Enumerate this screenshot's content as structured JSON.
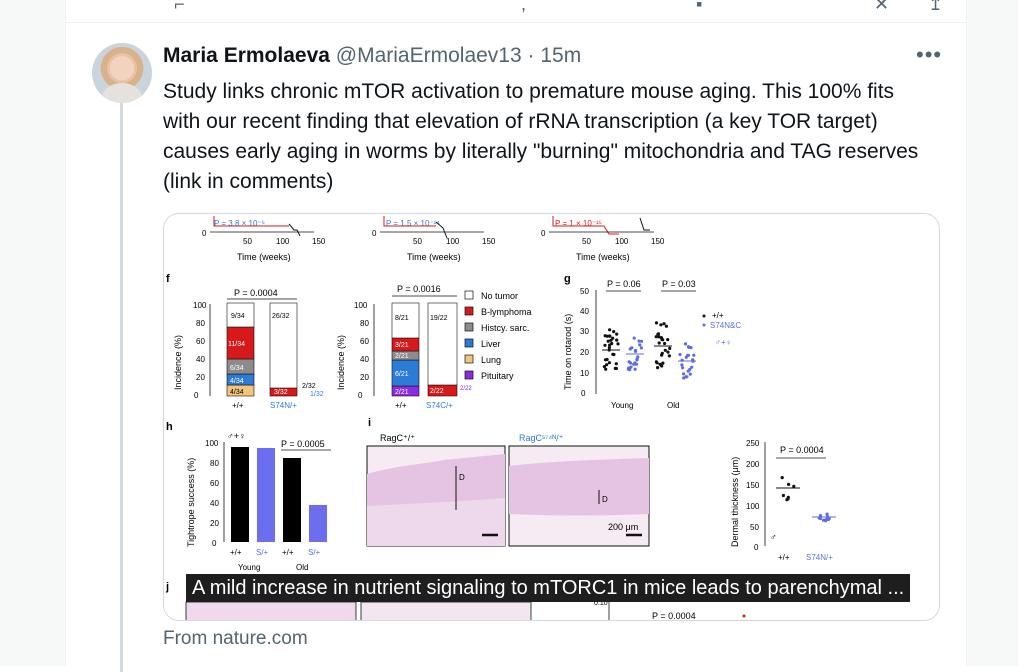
{
  "post": {
    "author_name": "Maria Ermolaeva",
    "handle": "@MariaErmolaev13",
    "separator": "·",
    "time": "15m",
    "more_label": "•••",
    "text": "Study links chronic mTOR activation to premature mouse aging. This 100% fits with our recent finding that elevation of rRNA transcription (a key TOR target) causes early aging in worms by literally \"burning\" mitochondria and TAG reserves (link in comments)"
  },
  "link_card": {
    "caption": "A mild increase in nutrient signaling to mTORC1 in mice leads to parenchymal ...",
    "source": "From nature.com"
  },
  "figure": {
    "top_strip": [
      {
        "p": "P = 3.8 × 10⁻⁶",
        "ticks": [
          "0",
          "50",
          "100",
          "150"
        ],
        "xlabel": "Time (weeks)"
      },
      {
        "p": "P = 1.5 × 10⁻¹⁴",
        "ticks": [
          "0",
          "50",
          "100",
          "150"
        ],
        "xlabel": "Time (weeks)"
      },
      {
        "p": "P = 1 × 10⁻¹⁵",
        "ticks": [
          "0",
          "50",
          "100",
          "150"
        ],
        "xlabel": "Time (weeks)"
      }
    ],
    "panel_f": {
      "letter": "f",
      "ylabel": "Incidence (%)",
      "yticks": [
        "0",
        "20",
        "40",
        "60",
        "80",
        "100"
      ],
      "left": {
        "p": "P = 0.0004",
        "wt_label": "+/+",
        "mut_label": "S74N/+",
        "wt_segments": [
          "4/34",
          "4/34",
          "6/34",
          "11/34",
          "9/34"
        ],
        "mut_segments": [
          "3/32",
          "26/32"
        ],
        "mut_side": [
          "2/32",
          "1/32"
        ]
      },
      "right": {
        "p": "P = 0.0016",
        "wt_label": "+/+",
        "mut_label": "S74C/+",
        "wt_segments": [
          "2/21",
          "6/21",
          "2/21",
          "3/21",
          "8/21"
        ],
        "mut_segments": [
          "2/22",
          "19/22"
        ],
        "mut_side": [
          "2/22"
        ]
      },
      "legend": [
        "No tumor",
        "B-lymphoma",
        "Histcy. sarc.",
        "Liver",
        "Lung",
        "Pituitary"
      ],
      "legend_colors": [
        "#ffffff",
        "#d7191c",
        "#8c8c8c",
        "#2c7bd6",
        "#f2c57c",
        "#8b2be2"
      ]
    },
    "panel_g": {
      "letter": "g",
      "ylabel": "Time on rotarod (s)",
      "yticks": [
        "0",
        "10",
        "20",
        "30",
        "40",
        "50"
      ],
      "p_young": "P = 0.06",
      "p_old": "P = 0.03",
      "groups": [
        "Young",
        "Old"
      ],
      "legend_wt": "+/+",
      "legend_mut": "S74N&C",
      "legend_sex": "♂+♀",
      "colors": [
        "#111111",
        "#5b6ee1"
      ]
    },
    "panel_h": {
      "letter": "h",
      "ylabel": "Tightrope success (%)",
      "yticks": [
        "0",
        "20",
        "40",
        "60",
        "80",
        "100"
      ],
      "sex": "♂+♀",
      "p": "P = 0.0005",
      "bar_labels": [
        "+/+",
        "S/+",
        "+/+",
        "S/+"
      ],
      "groups": [
        "Young",
        "Old"
      ],
      "values": [
        95,
        94,
        84,
        37
      ],
      "colors": [
        "#000000",
        "#6c6ef0",
        "#000000",
        "#6c6ef0"
      ]
    },
    "panel_i": {
      "letter": "i",
      "label_left": "RagC⁺/⁺",
      "label_right": "RagCˢ⁷⁴ᴺ/⁺",
      "marker": "D",
      "scale": "200 μm"
    },
    "panel_dermal": {
      "ylabel": "Dermal thickness (μm)",
      "yticks": [
        "0",
        "50",
        "100",
        "150",
        "200",
        "250"
      ],
      "p": "P = 0.0004",
      "sex": "♂",
      "xlabels": [
        "+/+",
        "S74N/+"
      ]
    },
    "panel_j": {
      "letter": "j",
      "tick": "0.10",
      "p": "P = 0.0004"
    }
  }
}
